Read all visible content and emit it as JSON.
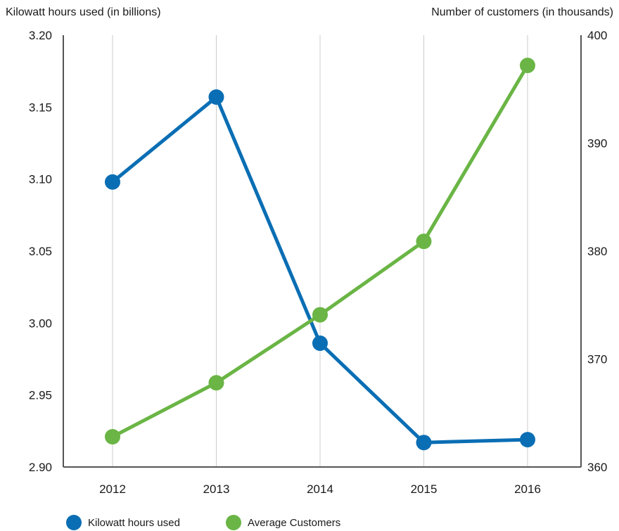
{
  "chart_data": {
    "type": "line",
    "categories": [
      "2012",
      "2013",
      "2014",
      "2015",
      "2016"
    ],
    "left_axis": {
      "label": "Kilowatt hours used (in billions)",
      "ylim": [
        2.9,
        3.2
      ],
      "ticks": [
        "3.20",
        "3.15",
        "3.10",
        "3.05",
        "3.00",
        "2.95",
        "2.90"
      ]
    },
    "right_axis": {
      "label": "Number of customers (in thousands)",
      "ylim": [
        360,
        400
      ],
      "ticks": [
        "400",
        "390",
        "380",
        "370",
        "360"
      ]
    },
    "series": [
      {
        "name": "Kilowatt hours used",
        "axis": "left",
        "color": "#0a6eb4",
        "values": [
          3.098,
          3.157,
          2.986,
          2.917,
          2.919
        ]
      },
      {
        "name": "Average Customers",
        "axis": "right",
        "color": "#6ab545",
        "values": [
          362.8,
          367.8,
          374.1,
          380.9,
          397.2
        ]
      }
    ],
    "grid": "vertical",
    "legend": "bottom-left"
  }
}
